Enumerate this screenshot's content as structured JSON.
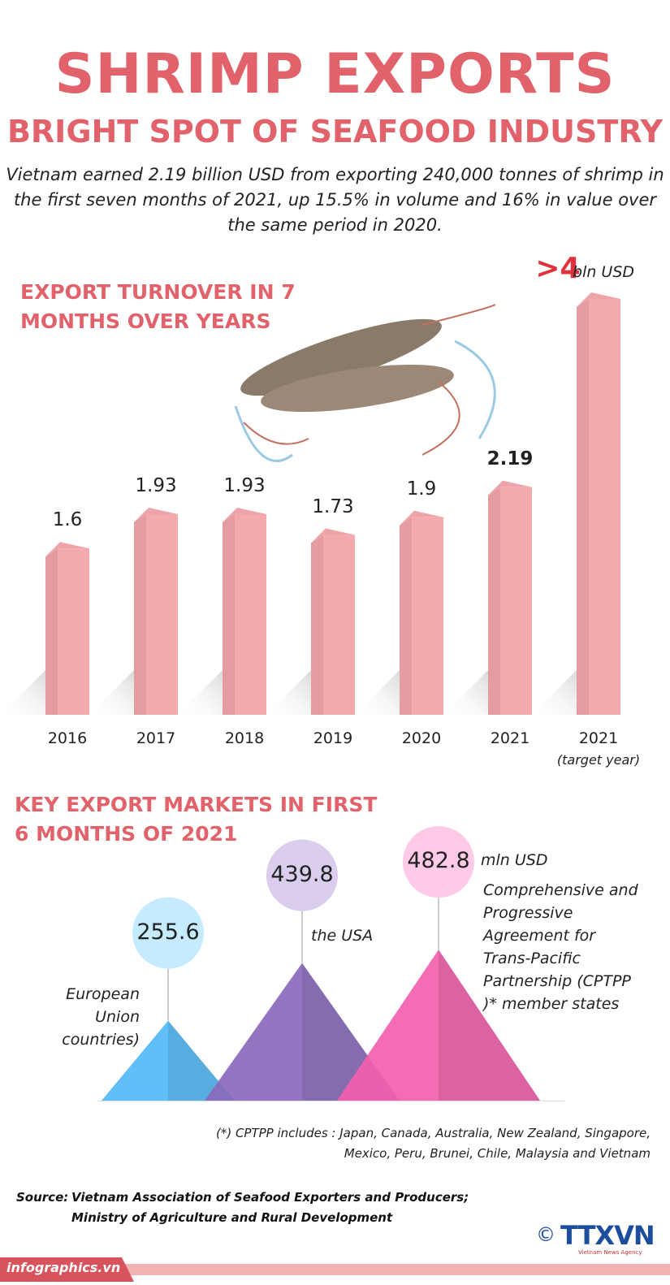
{
  "header": {
    "title": "SHRIMP EXPORTS",
    "subtitle": "BRIGHT SPOT OF SEAFOOD INDUSTRY",
    "intro": "Vietnam earned 2.19 billion USD from exporting 240,000 tonnes of shrimp in the first seven months of 2021, up 15.5% in volume and 16% in value over the same period in 2020."
  },
  "chart_data": [
    {
      "type": "bar",
      "title": "EXPORT TURNOVER IN 7 MONTHS OVER YEARS",
      "categories": [
        "2016",
        "2017",
        "2018",
        "2019",
        "2020",
        "2021",
        "2021"
      ],
      "target_note": "(target year)",
      "values": [
        1.6,
        1.93,
        1.93,
        1.73,
        1.9,
        2.19,
        4
      ],
      "value_labels": [
        "1.6",
        "1.93",
        "1.93",
        "1.73",
        "1.9",
        "2.19",
        ">4"
      ],
      "unit": "bln USD",
      "color": "#f4a9ad"
    },
    {
      "type": "pyramid",
      "title": "KEY EXPORT MARKETS IN FIRST 6 MONTHS OF 2021",
      "categories": [
        "European Union countries)",
        "the USA",
        "Comprehensive and Progressive Agreement for Trans-Pacific Partnership (CPTPP )* member states"
      ],
      "values": [
        255.6,
        439.8,
        482.8
      ],
      "unit": "mln USD",
      "colors": [
        "#4aa6dd",
        "#7b5ea8",
        "#d9559a"
      ]
    }
  ],
  "footnote": "(*) CPTPP includes : Japan, Canada, Australia, New Zealand, Singapore, Mexico, Peru, Brunei, Chile, Malaysia and Vietnam",
  "source": {
    "label": "Source:",
    "lines": [
      "Vietnam Association of Seafood Exporters and Producers;",
      "Ministry of Agriculture and Rural Development"
    ]
  },
  "footer": {
    "site": "infographics.vn",
    "copyright": "©",
    "logo": "TTXVN",
    "agency": "Vietnam News Agency"
  }
}
